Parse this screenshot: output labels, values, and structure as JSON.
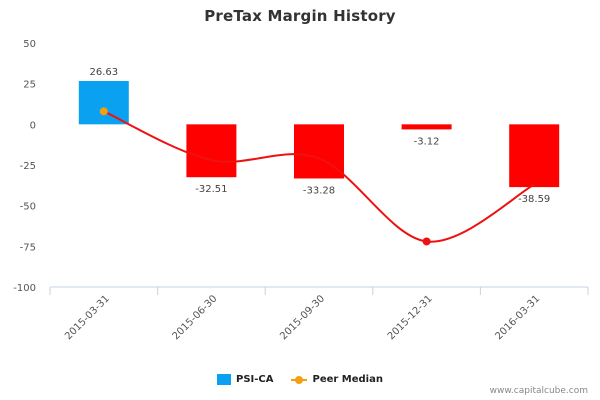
{
  "title": "PreTax Margin History",
  "credit": "www.capitalcube.com",
  "colors": {
    "company": "#0aa1f0",
    "negative": "#ff0000",
    "peer_line": "#ee1111",
    "peer_marker_negative": "#ee1111",
    "peer_marker_positive": "#f2a012"
  },
  "chart_data": {
    "type": "bar",
    "categories": [
      "2015-03-31",
      "2015-06-30",
      "2015-09-30",
      "2015-12-31",
      "2016-03-31"
    ],
    "series": [
      {
        "name": "PSI-CA",
        "values": [
          26.63,
          -32.51,
          -33.28,
          -3.12,
          -38.59
        ],
        "data_labels": [
          "26.63",
          "-32.51",
          "-33.28",
          "-3.12",
          "-38.59"
        ]
      },
      {
        "name": "Peer Median",
        "type": "line",
        "values": [
          8,
          -22,
          -21,
          -72,
          -37
        ]
      }
    ],
    "ylim": [
      -100,
      50
    ],
    "yticks": [
      50,
      25,
      0,
      -25,
      -50,
      -75,
      -100
    ],
    "ytick_labels": [
      "50",
      "25",
      "0",
      "-25",
      "-50",
      "-75",
      "-100"
    ],
    "legend": [
      "PSI-CA",
      "Peer Median"
    ],
    "legend_position": "bottom-center",
    "grid": false
  }
}
